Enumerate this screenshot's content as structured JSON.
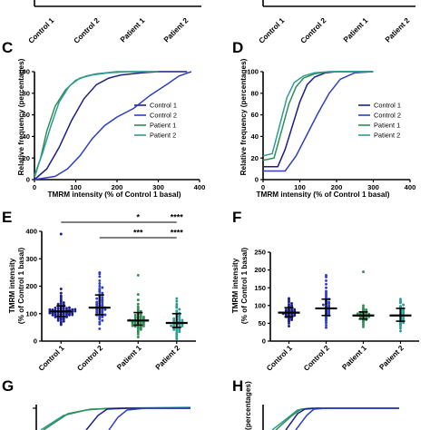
{
  "colors": {
    "control1": "#1b1f8a",
    "control2": "#2f3fbf",
    "patient1": "#2e8f55",
    "patient2": "#2e9c95"
  },
  "panel_labels": {
    "C": "C",
    "D": "D",
    "E": "E",
    "F": "F",
    "G": "G",
    "H": "H"
  },
  "group_names": [
    "Control 1",
    "Control 2",
    "Patient 1",
    "Patient 2"
  ],
  "labels": {
    "rel_freq": "Relative frequency (percentages)",
    "tmrm_x": "TMRM intensity (% of Control 1 basal)",
    "tmrm_y1": "TMRM intensity",
    "tmrm_y2": "(% of Control 1 basal)",
    "top_partial": "(percentages)"
  },
  "chart_data": [
    {
      "panel": "C",
      "type": "line",
      "xlabel": "TMRM intensity (% of Control 1 basal)",
      "ylabel": "Relative frequency (percentages)",
      "xlim": [
        0,
        400
      ],
      "ylim": [
        0,
        100
      ],
      "xticks": [
        0,
        100,
        200,
        300,
        400
      ],
      "yticks": [
        0,
        20,
        40,
        60,
        80,
        100
      ],
      "legend": "right",
      "series": [
        {
          "name": "Control 1",
          "color": "#1b1f8a",
          "x": [
            0,
            30,
            60,
            90,
            120,
            150,
            180,
            210,
            260,
            300,
            370
          ],
          "y": [
            0,
            10,
            30,
            55,
            75,
            88,
            94,
            97,
            99,
            100,
            100
          ]
        },
        {
          "name": "Control 2",
          "color": "#2f3fbf",
          "x": [
            0,
            50,
            80,
            110,
            140,
            170,
            200,
            240,
            280,
            320,
            350,
            380
          ],
          "y": [
            0,
            3,
            10,
            22,
            38,
            50,
            58,
            66,
            78,
            88,
            96,
            100
          ]
        },
        {
          "name": "Patient 1",
          "color": "#2e8f55",
          "x": [
            0,
            15,
            30,
            50,
            75,
            100,
            125,
            150,
            200,
            250,
            300
          ],
          "y": [
            2,
            20,
            45,
            68,
            83,
            92,
            96,
            98,
            100,
            100,
            100
          ]
        },
        {
          "name": "Patient 2",
          "color": "#2e9c95",
          "x": [
            0,
            20,
            40,
            60,
            85,
            110,
            140,
            180,
            230,
            280
          ],
          "y": [
            4,
            25,
            50,
            72,
            87,
            94,
            97,
            99,
            100,
            100
          ]
        }
      ]
    },
    {
      "panel": "D",
      "type": "line",
      "xlabel": "TMRM intensity (% of Control 1 basal)",
      "ylabel": "Relative frequency (percentages)",
      "xlim": [
        0,
        400
      ],
      "ylim": [
        0,
        100
      ],
      "xticks": [
        0,
        100,
        200,
        300,
        400
      ],
      "yticks": [
        0,
        20,
        40,
        60,
        80,
        100
      ],
      "legend": "right",
      "series": [
        {
          "name": "Control 1",
          "color": "#1b1f8a",
          "x": [
            0,
            40,
            60,
            80,
            100,
            120,
            140,
            170,
            200,
            250,
            300
          ],
          "y": [
            12,
            12,
            28,
            50,
            72,
            88,
            95,
            99,
            100,
            100,
            100
          ]
        },
        {
          "name": "Control 2",
          "color": "#2f3fbf",
          "x": [
            0,
            60,
            90,
            120,
            150,
            180,
            210,
            250,
            300
          ],
          "y": [
            8,
            8,
            22,
            42,
            62,
            80,
            93,
            99,
            100
          ]
        },
        {
          "name": "Patient 1",
          "color": "#2e8f55",
          "x": [
            0,
            30,
            50,
            70,
            90,
            110,
            140,
            180,
            230,
            300
          ],
          "y": [
            18,
            20,
            45,
            70,
            86,
            94,
            98,
            100,
            100,
            100
          ]
        },
        {
          "name": "Patient 2",
          "color": "#2e9c95",
          "x": [
            0,
            25,
            45,
            65,
            85,
            110,
            140,
            180,
            230,
            300
          ],
          "y": [
            22,
            24,
            50,
            76,
            90,
            96,
            99,
            100,
            100,
            100
          ]
        }
      ]
    },
    {
      "panel": "E",
      "type": "scatter",
      "categories": [
        "Control 1",
        "Control 2",
        "Patient 1",
        "Patient 2"
      ],
      "ylabel": "TMRM intensity (% of Control 1 basal)",
      "ylim": [
        0,
        400
      ],
      "yticks": [
        0,
        100,
        200,
        300,
        400
      ],
      "medians": [
        108,
        122,
        75,
        66
      ],
      "iqr": [
        [
          90,
          128
        ],
        [
          96,
          168
        ],
        [
          58,
          104
        ],
        [
          50,
          100
        ]
      ],
      "points": [
        [
          60,
          65,
          70,
          72,
          75,
          78,
          80,
          82,
          84,
          85,
          86,
          88,
          88,
          90,
          90,
          92,
          92,
          94,
          95,
          95,
          96,
          97,
          98,
          98,
          99,
          100,
          100,
          101,
          102,
          102,
          104,
          104,
          105,
          105,
          106,
          106,
          107,
          108,
          108,
          109,
          110,
          110,
          111,
          112,
          112,
          113,
          114,
          115,
          115,
          116,
          117,
          118,
          119,
          120,
          121,
          122,
          124,
          126,
          128,
          130,
          132,
          135,
          138,
          140,
          145,
          150,
          158,
          165,
          175,
          190,
          390
        ],
        [
          45,
          62,
          70,
          75,
          80,
          84,
          88,
          90,
          92,
          95,
          96,
          98,
          100,
          102,
          104,
          106,
          108,
          110,
          112,
          114,
          115,
          117,
          118,
          120,
          122,
          124,
          126,
          128,
          130,
          132,
          135,
          138,
          140,
          142,
          145,
          148,
          150,
          152,
          155,
          158,
          160,
          165,
          170,
          175,
          180,
          185,
          190,
          195,
          200,
          210,
          220,
          235,
          245,
          250
        ],
        [
          15,
          25,
          32,
          38,
          42,
          45,
          48,
          50,
          52,
          54,
          55,
          56,
          58,
          60,
          60,
          62,
          63,
          64,
          65,
          66,
          68,
          69,
          70,
          71,
          72,
          73,
          74,
          75,
          76,
          77,
          78,
          80,
          82,
          84,
          85,
          87,
          88,
          90,
          92,
          95,
          98,
          100,
          104,
          108,
          112,
          118,
          125,
          135,
          150,
          170,
          240
        ],
        [
          8,
          14,
          20,
          25,
          30,
          34,
          38,
          40,
          42,
          45,
          46,
          48,
          50,
          52,
          53,
          55,
          56,
          58,
          60,
          61,
          62,
          64,
          65,
          66,
          68,
          70,
          72,
          74,
          76,
          78,
          80,
          82,
          85,
          88,
          90,
          94,
          98,
          102,
          106,
          110,
          116,
          122,
          128,
          135,
          145,
          155
        ]
      ],
      "significance": [
        {
          "label": "*",
          "group1": "Control 1",
          "group2": "Patient 1"
        },
        {
          "label": "****",
          "group1": "Control 1",
          "group2": "Patient 2"
        },
        {
          "label": "***",
          "group1": "Control 2",
          "group2": "Patient 1"
        },
        {
          "label": "****",
          "group1": "Control 2",
          "group2": "Patient 2"
        }
      ]
    },
    {
      "panel": "F",
      "type": "scatter",
      "categories": [
        "Control 1",
        "Control 2",
        "Patient 1",
        "Patient 2"
      ],
      "ylabel": "TMRM intensity (% of Control 1 basal)",
      "ylim": [
        0,
        250
      ],
      "yticks": [
        0,
        50,
        100,
        150,
        200,
        250
      ],
      "medians": [
        80,
        92,
        72,
        72
      ],
      "iqr": [
        [
          68,
          94
        ],
        [
          72,
          118
        ],
        [
          62,
          82
        ],
        [
          56,
          92
        ]
      ],
      "points": [
        [
          42,
          50,
          55,
          58,
          60,
          62,
          64,
          66,
          67,
          68,
          69,
          70,
          71,
          72,
          73,
          74,
          75,
          76,
          77,
          78,
          79,
          80,
          81,
          82,
          83,
          84,
          85,
          86,
          87,
          88,
          89,
          90,
          92,
          94,
          96,
          98,
          100,
          103,
          106,
          110,
          115,
          120
        ],
        [
          38,
          45,
          52,
          58,
          62,
          66,
          70,
          72,
          74,
          76,
          78,
          80,
          82,
          84,
          86,
          88,
          90,
          92,
          94,
          96,
          98,
          100,
          102,
          104,
          106,
          108,
          110,
          112,
          115,
          118,
          120,
          125,
          130,
          135,
          140,
          150,
          160,
          170,
          180,
          185
        ],
        [
          40,
          46,
          52,
          56,
          58,
          60,
          62,
          63,
          64,
          65,
          66,
          67,
          68,
          69,
          70,
          70,
          71,
          72,
          73,
          74,
          75,
          76,
          77,
          78,
          79,
          80,
          82,
          84,
          86,
          88,
          90,
          94,
          100,
          195
        ],
        [
          28,
          36,
          42,
          46,
          50,
          52,
          54,
          56,
          58,
          60,
          62,
          64,
          66,
          68,
          70,
          72,
          74,
          76,
          78,
          80,
          82,
          84,
          86,
          88,
          90,
          92,
          95,
          98,
          102,
          108,
          112,
          118
        ]
      ]
    }
  ]
}
